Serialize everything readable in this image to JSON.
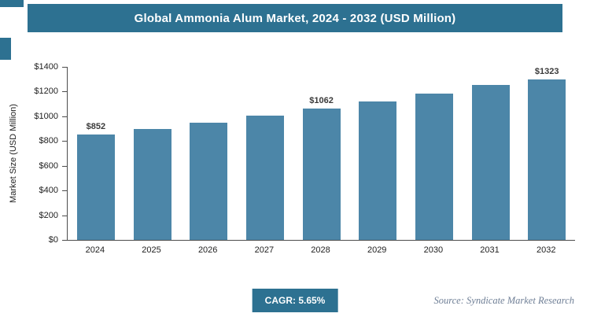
{
  "header": {
    "title": "Global Ammonia Alum Market, 2024 - 2032 (USD Million)"
  },
  "chart_data": {
    "type": "bar",
    "title": "Global Ammonia Alum Market, 2024 - 2032 (USD Million)",
    "categories": [
      "2024",
      "2025",
      "2026",
      "2027",
      "2028",
      "2029",
      "2030",
      "2031",
      "2032"
    ],
    "values": [
      852,
      900,
      951,
      1005,
      1062,
      1122,
      1185,
      1252,
      1323
    ],
    "data_labels": [
      "$852",
      null,
      null,
      null,
      "$1062",
      null,
      null,
      null,
      "$1323"
    ],
    "xlabel": "",
    "ylabel": "Market Size (USD Million)",
    "ylim": [
      0,
      1400
    ],
    "ytick_labels": [
      "$0",
      "$200",
      "$400",
      "$600",
      "$800",
      "$1000",
      "$1200",
      "$1400"
    ],
    "grid": false,
    "legend_position": "none",
    "bar_color": "#4C86A8",
    "accent_color": "#2D7191"
  },
  "footer": {
    "cagr_label": "CAGR: 5.65%",
    "source": "Source: Syndicate Market Research"
  }
}
